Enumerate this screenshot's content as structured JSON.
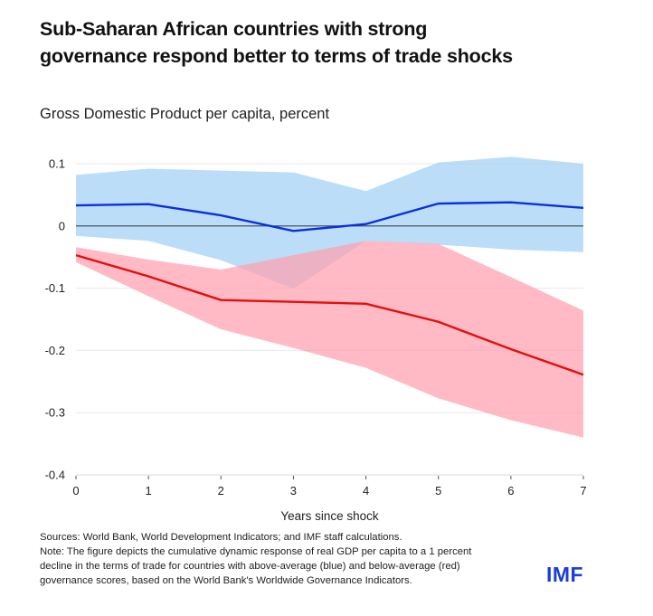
{
  "header": {
    "title_line1": "Sub-Saharan African countries with strong",
    "title_line2": "governance respond better to terms of trade shocks",
    "subtitle": "Gross Domestic Product per capita, percent"
  },
  "chart_data": {
    "type": "line",
    "title": "Sub-Saharan African countries with strong governance respond better to terms of trade shocks",
    "subtitle": "Gross Domestic Product per capita, percent",
    "xlabel": "Years since shock",
    "ylabel": "",
    "x": [
      0,
      1,
      2,
      3,
      4,
      5,
      6,
      7
    ],
    "x_tick_labels": [
      "0",
      "1",
      "2",
      "3",
      "4",
      "5",
      "6",
      "7"
    ],
    "y_ticks": [
      0.1,
      0,
      -0.1,
      -0.2,
      -0.3,
      -0.4
    ],
    "y_tick_labels": [
      "0.1",
      "0",
      "-0.1",
      "-0.2",
      "-0.3",
      "-0.4"
    ],
    "xlim": [
      0,
      7
    ],
    "ylim": [
      -0.4,
      0.1
    ],
    "grid": "horizontal",
    "legend": "none",
    "series": [
      {
        "name": "Above-average governance (blue)",
        "color": "#0a2fe0",
        "band_color": "#a9d3f5",
        "values": [
          0.033,
          0.035,
          0.017,
          -0.008,
          0.003,
          0.036,
          0.038,
          0.029
        ],
        "upper": [
          0.082,
          0.092,
          0.089,
          0.086,
          0.056,
          0.102,
          0.111,
          0.1
        ],
        "lower": [
          -0.016,
          -0.024,
          -0.055,
          -0.101,
          -0.024,
          -0.03,
          -0.038,
          -0.042
        ]
      },
      {
        "name": "Below-average governance (red)",
        "color": "#e60d0d",
        "band_color": "#ff9fae",
        "values": [
          -0.047,
          -0.081,
          -0.119,
          -0.122,
          -0.125,
          -0.154,
          -0.198,
          -0.239
        ],
        "upper": [
          -0.034,
          -0.054,
          -0.07,
          -0.047,
          -0.024,
          -0.029,
          -0.082,
          -0.136
        ],
        "lower": [
          -0.058,
          -0.113,
          -0.166,
          -0.196,
          -0.228,
          -0.277,
          -0.312,
          -0.34
        ]
      }
    ]
  },
  "footer": {
    "sources": "Sources: World Bank, World Development Indicators; and IMF staff calculations.",
    "note_line1": "Note: The figure depicts the cumulative dynamic response of real GDP per capita to a 1 percent",
    "note_line2": "decline in the terms of trade for countries with above-average (blue) and below-average (red)",
    "note_line3": "governance scores, based on the World Bank's Worldwide Governance Indicators.",
    "logo": "IMF"
  }
}
